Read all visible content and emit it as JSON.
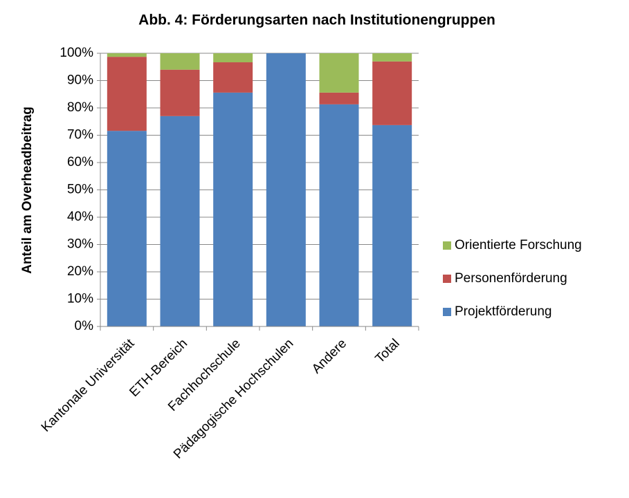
{
  "chart_data": {
    "type": "stacked_bar",
    "title": "Abb. 4: Förderungsarten nach Institutionengruppen",
    "y_label": "Anteil am Overheadbeitrag",
    "categories": [
      "Kantonale Universität",
      "ETH-Bereich",
      "Fachhochschule",
      "Pädagogische Hochschulen",
      "Andere",
      "Total"
    ],
    "series": [
      {
        "name": "Projektförderung",
        "color": "#4f81bd",
        "values": [
          71.6,
          77,
          85.6,
          100,
          81.3,
          73.7
        ]
      },
      {
        "name": "Personenförderung",
        "color": "#c0504d",
        "values": [
          27.1,
          17,
          11.1,
          0,
          4.3,
          23.3
        ]
      },
      {
        "name": "Orientierte Forschung",
        "color": "#9bbb59",
        "values": [
          1.3,
          6,
          3.3,
          0,
          14.4,
          3
        ]
      }
    ],
    "ylim": [
      0,
      100
    ],
    "yticks": [
      {
        "value": 0,
        "label": "0%"
      },
      {
        "value": 10,
        "label": "10%"
      },
      {
        "value": 20,
        "label": "20%"
      },
      {
        "value": 30,
        "label": "30%"
      },
      {
        "value": 40,
        "label": "40%"
      },
      {
        "value": 50,
        "label": "50%"
      },
      {
        "value": 60,
        "label": "60%"
      },
      {
        "value": 70,
        "label": "70%"
      },
      {
        "value": 80,
        "label": "80%"
      },
      {
        "value": 90,
        "label": "90%"
      },
      {
        "value": 100,
        "label": "100%"
      }
    ],
    "grid": true,
    "legend": "right"
  }
}
